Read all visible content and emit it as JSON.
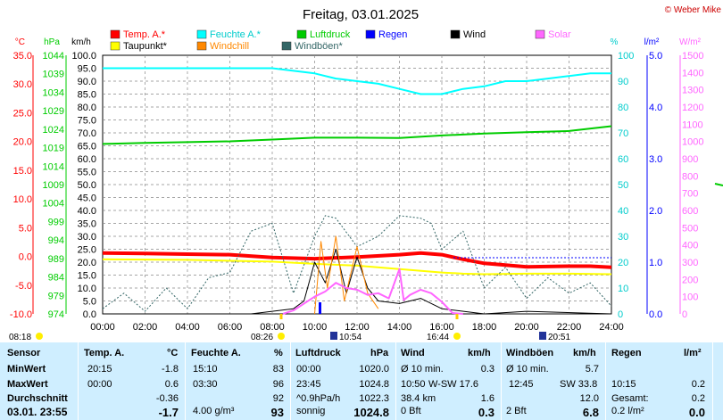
{
  "title": "Freitag, 03.01.2025",
  "credit": "© Weber Mike",
  "units": {
    "temp": "°C",
    "press": "hPa",
    "wind": "km/h",
    "hum": "%",
    "rain": "l/m²",
    "solar": "W/m²"
  },
  "legend": [
    {
      "label": "Temp. A.*",
      "color": "#ff0000"
    },
    {
      "label": "Feuchte A.*",
      "color": "#00ffff"
    },
    {
      "label": "Luftdruck",
      "color": "#00cc00"
    },
    {
      "label": "Regen",
      "color": "#0000ff"
    },
    {
      "label": "Wind",
      "color": "#000000"
    },
    {
      "label": "Solar",
      "color": "#ff66ff"
    },
    {
      "label": "Taupunkt*",
      "color": "#ffff00"
    },
    {
      "label": "Windchill",
      "color": "#ff8800"
    },
    {
      "label": "Windböen*",
      "color": "#336666"
    }
  ],
  "sun": {
    "rise": "08:26",
    "set": "16:44"
  },
  "moon": {
    "rise": "10:54",
    "set": "20:51"
  },
  "day_start": "08:18",
  "chart_data": {
    "type": "line",
    "x_ticks": [
      "00:00",
      "02:00",
      "04:00",
      "06:00",
      "08:00",
      "10:00",
      "12:00",
      "14:00",
      "16:00",
      "18:00",
      "20:00",
      "22:00",
      "24:00"
    ],
    "axes": {
      "temp": {
        "ticks": [
          "35.0",
          "30.0",
          "25.0",
          "20.0",
          "15.0",
          "10.0",
          "5.0",
          "0.0",
          "-5.0",
          "-10.0"
        ],
        "range": [
          -10,
          35
        ]
      },
      "press": {
        "ticks": [
          "1044",
          "1039",
          "1034",
          "1029",
          "1024",
          "1019",
          "1014",
          "1009",
          "1004",
          "999",
          "994",
          "989",
          "984",
          "979",
          "974"
        ],
        "range": [
          974,
          1044
        ]
      },
      "wind": {
        "ticks": [
          "100.0",
          "95.0",
          "90.0",
          "85.0",
          "80.0",
          "75.0",
          "70.0",
          "65.0",
          "60.0",
          "55.0",
          "50.0",
          "45.0",
          "40.0",
          "35.0",
          "30.0",
          "25.0",
          "20.0",
          "15.0",
          "10.0",
          "5.0",
          "0.0"
        ],
        "range": [
          0,
          100
        ]
      },
      "hum": {
        "ticks": [
          "100",
          "90",
          "80",
          "70",
          "60",
          "50",
          "40",
          "30",
          "20",
          "10",
          "0"
        ],
        "range": [
          0,
          100
        ]
      },
      "rain": {
        "ticks": [
          "5.0",
          "4.0",
          "3.0",
          "2.0",
          "1.0",
          "0.0"
        ],
        "range": [
          0,
          5
        ]
      },
      "solar": {
        "ticks": [
          "1500",
          "1400",
          "1300",
          "1200",
          "1100",
          "1000",
          "900",
          "800",
          "700",
          "600",
          "500",
          "400",
          "300",
          "200",
          "100",
          "0"
        ],
        "range": [
          0,
          1500
        ]
      }
    },
    "series": [
      {
        "name": "Temp. A.*",
        "axis": "temp",
        "color": "#ff0000",
        "width": 4,
        "points": [
          [
            0,
            0.6
          ],
          [
            2,
            0.5
          ],
          [
            4,
            0.4
          ],
          [
            6,
            0.3
          ],
          [
            8,
            -0.2
          ],
          [
            10,
            -0.4
          ],
          [
            12,
            -0.1
          ],
          [
            14,
            0.3
          ],
          [
            15,
            0.6
          ],
          [
            16,
            0.3
          ],
          [
            17,
            -0.5
          ],
          [
            18,
            -1.2
          ],
          [
            19,
            -1.5
          ],
          [
            20,
            -1.8
          ],
          [
            22,
            -1.7
          ],
          [
            23,
            -1.7
          ],
          [
            24,
            -1.9
          ]
        ]
      },
      {
        "name": "Taupunkt*",
        "axis": "temp",
        "color": "#ffff00",
        "width": 2,
        "points": [
          [
            0,
            -0.5
          ],
          [
            4,
            -0.6
          ],
          [
            8,
            -0.9
          ],
          [
            10,
            -1.3
          ],
          [
            12,
            -1.6
          ],
          [
            14,
            -2.2
          ],
          [
            16,
            -2.8
          ],
          [
            17,
            -3.0
          ],
          [
            18,
            -3.1
          ],
          [
            20,
            -3.0
          ],
          [
            22,
            -3.0
          ],
          [
            24,
            -3.1
          ]
        ]
      },
      {
        "name": "Feuchte A.*",
        "axis": "hum",
        "color": "#00ffff",
        "width": 2,
        "points": [
          [
            0,
            95
          ],
          [
            4,
            95
          ],
          [
            8,
            95
          ],
          [
            9,
            94
          ],
          [
            10,
            93
          ],
          [
            11,
            91
          ],
          [
            12,
            90
          ],
          [
            13,
            89
          ],
          [
            14,
            87
          ],
          [
            15,
            85
          ],
          [
            16,
            85
          ],
          [
            17,
            87
          ],
          [
            18,
            88
          ],
          [
            19,
            90
          ],
          [
            20,
            90
          ],
          [
            21,
            91
          ],
          [
            22,
            92
          ],
          [
            23,
            93
          ],
          [
            24,
            93
          ]
        ]
      },
      {
        "name": "Luftdruck",
        "axis": "press",
        "color": "#00cc00",
        "width": 2,
        "points": [
          [
            0,
            1020.0
          ],
          [
            2,
            1020.3
          ],
          [
            4,
            1020.5
          ],
          [
            6,
            1020.7
          ],
          [
            8,
            1021.2
          ],
          [
            10,
            1021.7
          ],
          [
            12,
            1021.7
          ],
          [
            14,
            1021.6
          ],
          [
            16,
            1022.3
          ],
          [
            18,
            1022.8
          ],
          [
            20,
            1023.2
          ],
          [
            22,
            1023.5
          ],
          [
            24,
            1024.8
          ]
        ]
      },
      {
        "name": "Windböen*",
        "axis": "wind",
        "color": "#336666",
        "width": 1,
        "dash": "2,2",
        "points": [
          [
            0,
            2
          ],
          [
            1,
            8
          ],
          [
            2,
            1
          ],
          [
            3,
            10
          ],
          [
            4,
            2
          ],
          [
            5,
            14
          ],
          [
            6,
            16
          ],
          [
            7,
            32
          ],
          [
            8,
            35
          ],
          [
            9,
            8
          ],
          [
            10,
            30
          ],
          [
            10.5,
            38
          ],
          [
            11,
            37
          ],
          [
            12,
            26
          ],
          [
            13,
            30
          ],
          [
            14,
            38
          ],
          [
            15,
            37
          ],
          [
            15.5,
            35
          ],
          [
            16,
            25
          ],
          [
            17,
            32
          ],
          [
            18,
            10
          ],
          [
            19,
            18
          ],
          [
            20,
            6
          ],
          [
            21,
            14
          ],
          [
            22,
            8
          ],
          [
            23,
            12
          ],
          [
            24,
            3
          ]
        ]
      },
      {
        "name": "Wind",
        "axis": "wind",
        "color": "#000000",
        "width": 1,
        "points": [
          [
            0,
            0
          ],
          [
            7,
            0
          ],
          [
            8,
            1
          ],
          [
            9,
            2
          ],
          [
            9.5,
            5
          ],
          [
            10,
            20
          ],
          [
            10.5,
            12
          ],
          [
            11,
            25
          ],
          [
            11.5,
            8
          ],
          [
            12,
            22
          ],
          [
            12.5,
            10
          ],
          [
            13,
            5
          ],
          [
            14,
            4
          ],
          [
            15,
            6
          ],
          [
            16,
            2
          ],
          [
            18,
            0
          ],
          [
            20,
            1
          ],
          [
            24,
            0
          ]
        ]
      },
      {
        "name": "Windchill",
        "axis": "wind",
        "color": "#ff8800",
        "width": 1,
        "points": [
          [
            10,
            0
          ],
          [
            10.3,
            28
          ],
          [
            10.6,
            10
          ],
          [
            11,
            30
          ],
          [
            11.4,
            5
          ],
          [
            12,
            26
          ],
          [
            12.5,
            8
          ],
          [
            13,
            2
          ]
        ]
      },
      {
        "name": "Solar",
        "axis": "solar",
        "color": "#ff66ff",
        "width": 2,
        "points": [
          [
            8.5,
            0
          ],
          [
            9,
            20
          ],
          [
            10,
            100
          ],
          [
            10.5,
            130
          ],
          [
            11,
            180
          ],
          [
            11.5,
            150
          ],
          [
            12,
            140
          ],
          [
            12.5,
            110
          ],
          [
            13,
            120
          ],
          [
            13.5,
            90
          ],
          [
            14,
            260
          ],
          [
            14.2,
            80
          ],
          [
            14.5,
            110
          ],
          [
            15,
            140
          ],
          [
            15.5,
            120
          ],
          [
            16,
            70
          ],
          [
            16.5,
            5
          ],
          [
            17,
            0
          ]
        ]
      }
    ]
  },
  "table": {
    "headers": {
      "sensor": "Sensor",
      "temp": "Temp. A.",
      "temp_u": "°C",
      "hum": "Feuchte A.",
      "hum_u": "%",
      "press": "Luftdruck",
      "press_u": "hPa",
      "wind": "Wind",
      "wind_u": "km/h",
      "gust": "Windböen",
      "gust_u": "km/h",
      "rain": "Regen",
      "rain_u": "l/m²"
    },
    "rows": [
      {
        "label": "MinWert",
        "t_time": "20:15",
        "t_val": "-1.8",
        "h_time": "15:10",
        "h_val": "83",
        "p_time": "00:00",
        "p_val": "1020.0",
        "w_text": "Ø 10 min.",
        "w_val": "0.3",
        "g_text": "Ø 10 min.",
        "g_val": "5.7",
        "r_text": "",
        "r_val": ""
      },
      {
        "label": "MaxWert",
        "t_time": "00:00",
        "t_val": "0.6",
        "h_time": "03:30",
        "h_val": "96",
        "p_time": "23:45",
        "p_val": "1024.8",
        "w_time": "10:50",
        "w_text": "W-SW 17.6",
        "w_val": "",
        "g_time": "12:45",
        "g_text": "SW 33.8",
        "g_val": "",
        "r_text": "10:15",
        "r_val": "0.2"
      },
      {
        "label": "Durchschnitt",
        "t_time": "",
        "t_val": "-0.36",
        "h_time": "",
        "h_val": "92",
        "p_time": "^0.9hPa/h",
        "p_val": "1022.3",
        "w_text": "38.4 km",
        "w_val": "1.6",
        "g_text": "",
        "g_val": "12.0",
        "r_text": "Gesamt:",
        "r_val": "0.2"
      },
      {
        "label": "03.01. 23:55",
        "t_time": "",
        "t_val": "-1.7",
        "h_time": "4.00 g/m³",
        "h_val": "93",
        "p_time": "sonnig",
        "p_val": "1024.8",
        "w_text": "0 Bft",
        "w_val": "0.3",
        "g_text": "2 Bft",
        "g_val": "6.8",
        "r_text": "0.2 l/m²",
        "r_val": "0.0"
      }
    ]
  }
}
